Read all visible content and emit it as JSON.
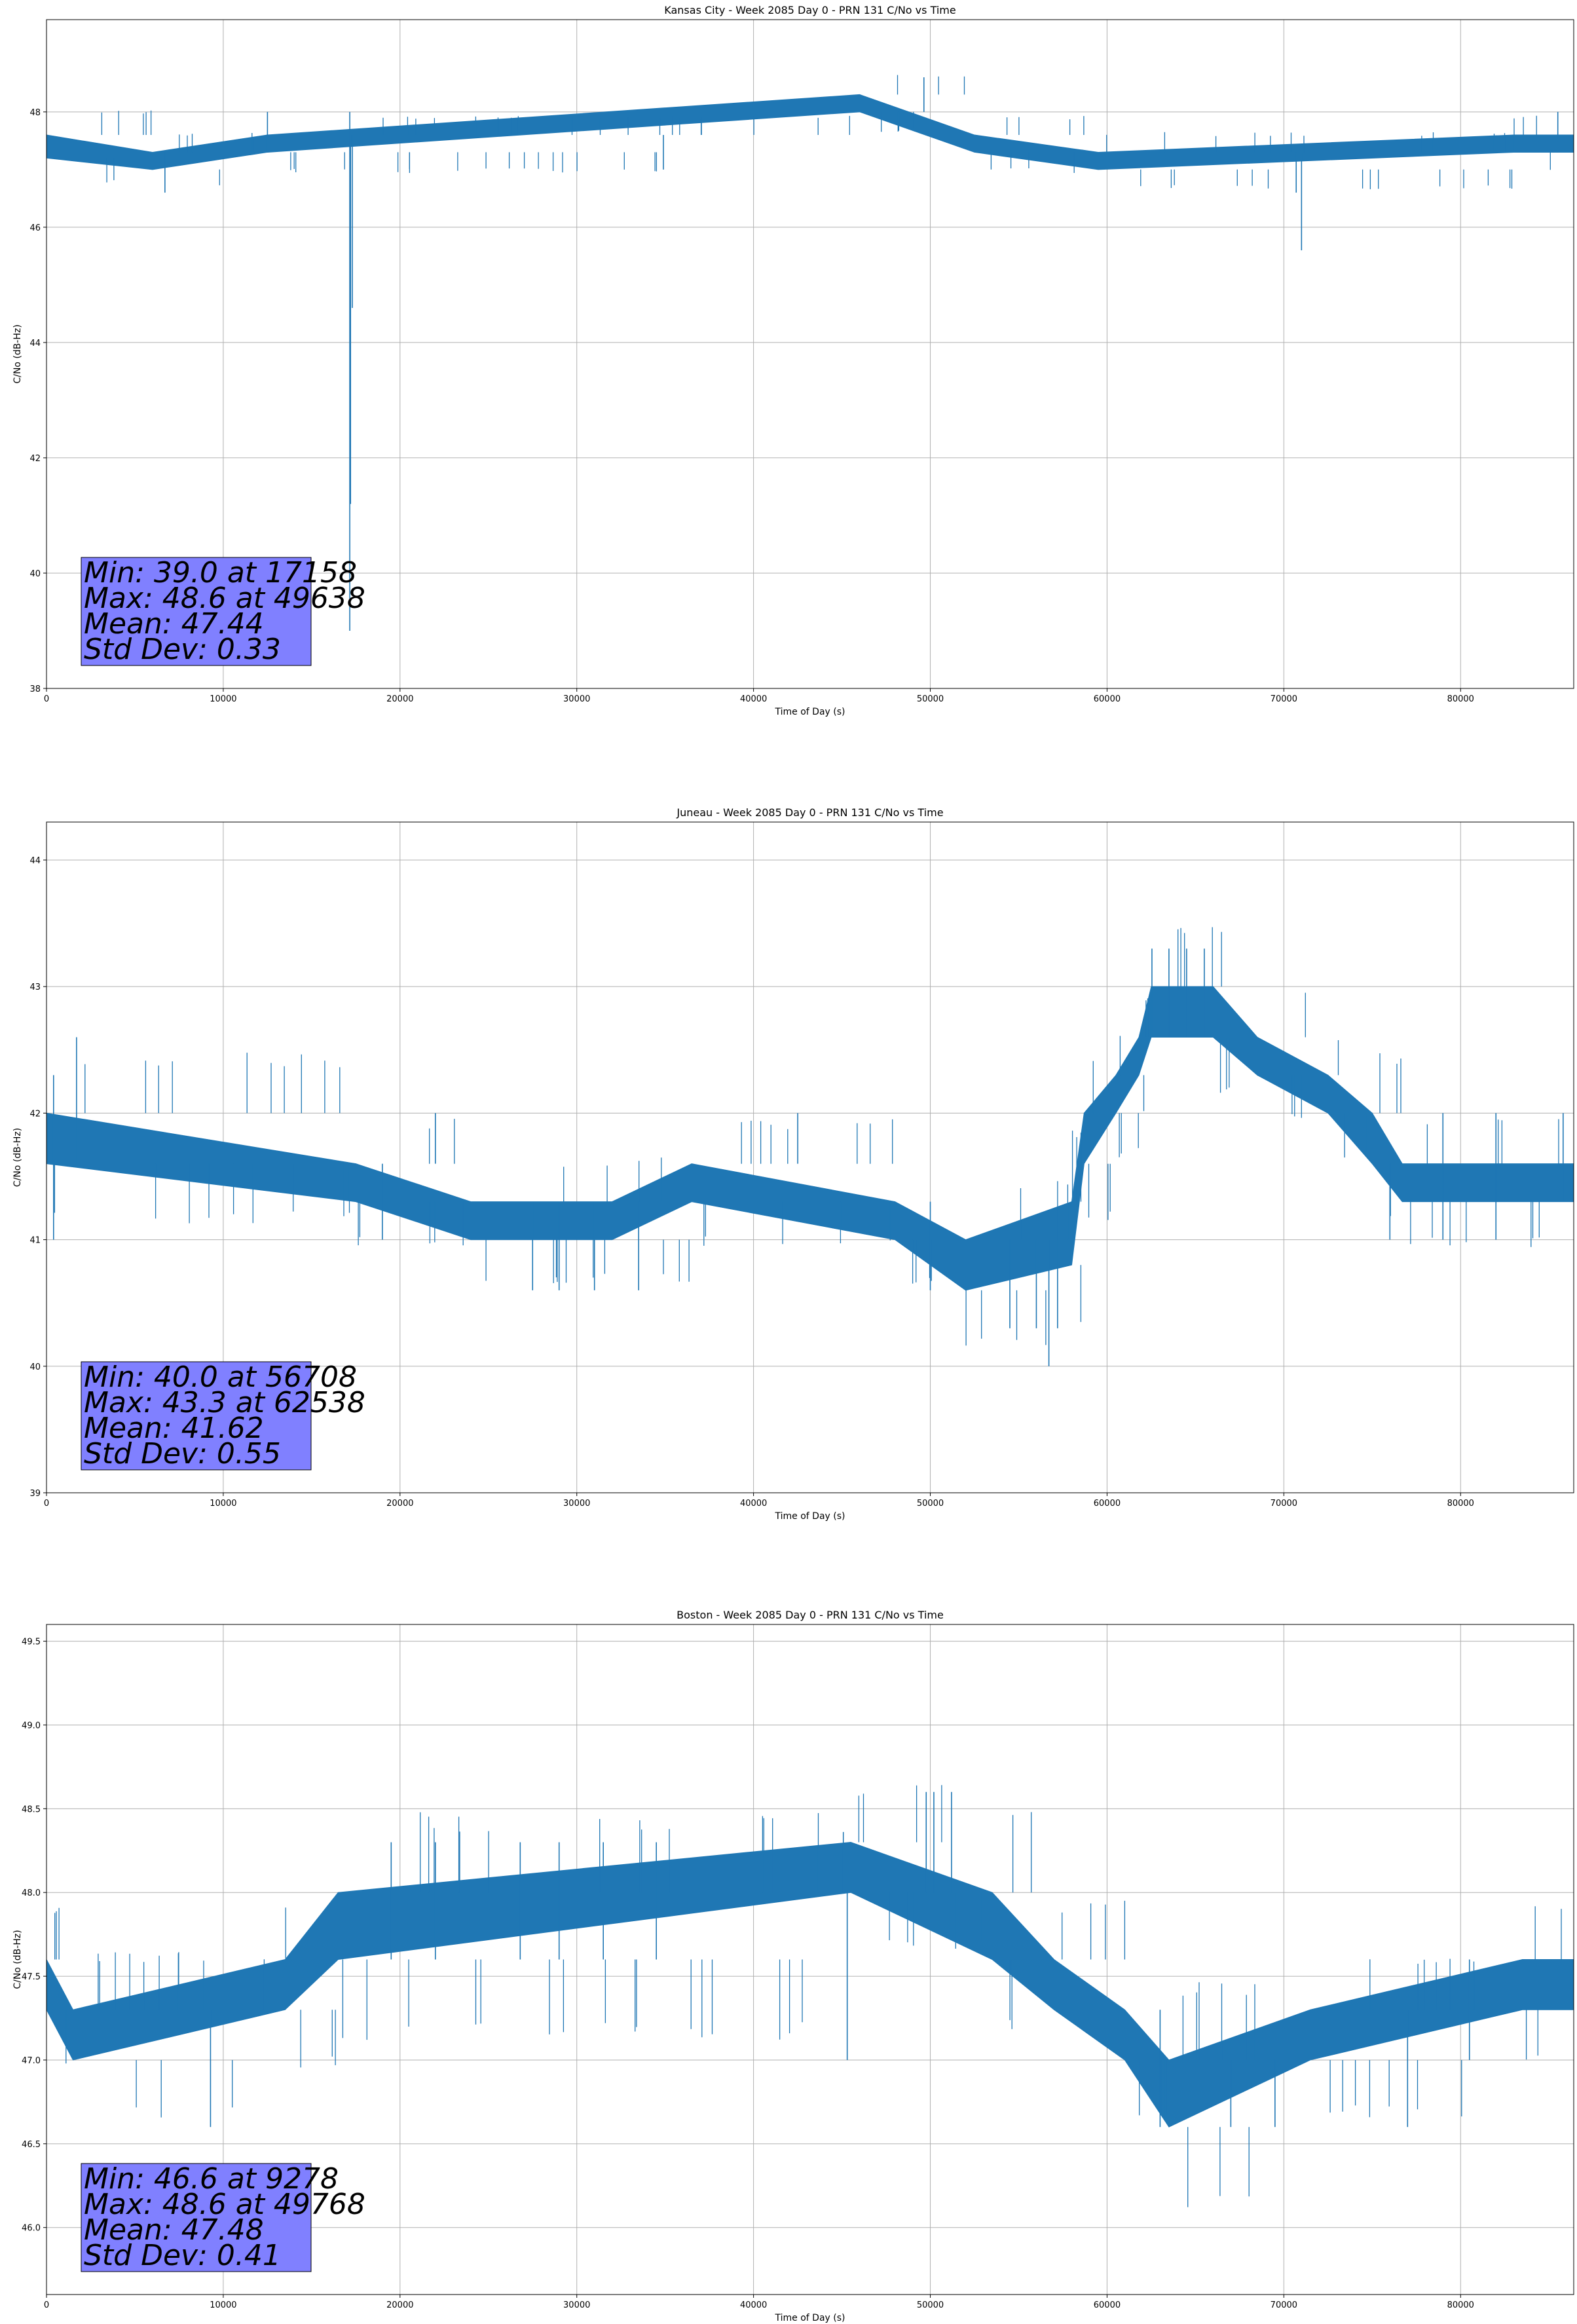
{
  "chart_data": [
    {
      "type": "line",
      "title": "Kansas City - Week 2085 Day 0 - PRN 131 C/No vs Time",
      "xlabel": "Time of Day (s)",
      "ylabel": "C/No (dB-Hz)",
      "xlim": [
        0,
        86400
      ],
      "ylim": [
        38,
        49.6
      ],
      "xticks": [
        0,
        10000,
        20000,
        30000,
        40000,
        50000,
        60000,
        70000,
        80000
      ],
      "yticks": [
        38,
        40,
        42,
        44,
        46,
        48
      ],
      "ytick_labels": [
        "38",
        "40",
        "42",
        "44",
        "46",
        "48"
      ],
      "grid": true,
      "color": "#1f77b4",
      "stats_box_color": "#8080ff",
      "stats": [
        "Min: 39.0 at 17158",
        "Max: 48.6 at 49638",
        "Mean: 47.44",
        "Std Dev: 0.33"
      ],
      "band": [
        {
          "x": 0,
          "lo": 47.2,
          "hi": 47.6
        },
        {
          "x": 6000,
          "lo": 47.0,
          "hi": 47.3
        },
        {
          "x": 12500,
          "lo": 47.3,
          "hi": 47.6
        },
        {
          "x": 46000,
          "lo": 48.0,
          "hi": 48.3
        },
        {
          "x": 52500,
          "lo": 47.3,
          "hi": 47.6
        },
        {
          "x": 59500,
          "lo": 47.0,
          "hi": 47.3
        },
        {
          "x": 83000,
          "lo": 47.3,
          "hi": 47.6
        },
        {
          "x": 86400,
          "lo": 47.3,
          "hi": 47.6
        }
      ],
      "spikes": [
        {
          "x": 6700,
          "lo": 46.6,
          "hi": 47.3
        },
        {
          "x": 12500,
          "lo": 47.3,
          "hi": 48.0
        },
        {
          "x": 17158,
          "lo": 39.0,
          "hi": 48.0
        },
        {
          "x": 17200,
          "lo": 41.2,
          "hi": 47.6
        },
        {
          "x": 17300,
          "lo": 44.6,
          "hi": 47.6
        },
        {
          "x": 34900,
          "lo": 47.0,
          "hi": 47.6
        },
        {
          "x": 49638,
          "lo": 48.0,
          "hi": 48.6
        },
        {
          "x": 71000,
          "lo": 45.6,
          "hi": 47.3
        },
        {
          "x": 70700,
          "lo": 46.6,
          "hi": 47.3
        },
        {
          "x": 85500,
          "lo": 47.3,
          "hi": 48.0
        }
      ]
    },
    {
      "type": "line",
      "title": "Juneau - Week 2085 Day 0 - PRN 131 C/No vs Time",
      "xlabel": "Time of Day (s)",
      "ylabel": "C/No (dB-Hz)",
      "xlim": [
        0,
        86400
      ],
      "ylim": [
        39,
        44.3
      ],
      "xticks": [
        0,
        10000,
        20000,
        30000,
        40000,
        50000,
        60000,
        70000,
        80000
      ],
      "yticks": [
        39,
        40,
        41,
        42,
        43,
        44
      ],
      "ytick_labels": [
        "39",
        "40",
        "41",
        "42",
        "43",
        "44"
      ],
      "grid": true,
      "color": "#1f77b4",
      "stats_box_color": "#8080ff",
      "stats": [
        "Min: 40.0 at 56708",
        "Max: 43.3 at 62538",
        "Mean: 41.62",
        "Std Dev: 0.55"
      ],
      "band": [
        {
          "x": 0,
          "lo": 41.6,
          "hi": 42.0
        },
        {
          "x": 17500,
          "lo": 41.3,
          "hi": 41.6
        },
        {
          "x": 24000,
          "lo": 41.0,
          "hi": 41.3
        },
        {
          "x": 32000,
          "lo": 41.0,
          "hi": 41.3
        },
        {
          "x": 36500,
          "lo": 41.3,
          "hi": 41.6
        },
        {
          "x": 48000,
          "lo": 41.0,
          "hi": 41.3
        },
        {
          "x": 52000,
          "lo": 40.6,
          "hi": 41.0
        },
        {
          "x": 58000,
          "lo": 40.8,
          "hi": 41.3
        },
        {
          "x": 58700,
          "lo": 41.6,
          "hi": 42.0
        },
        {
          "x": 60500,
          "lo": 42.0,
          "hi": 42.3
        },
        {
          "x": 61800,
          "lo": 42.3,
          "hi": 42.6
        },
        {
          "x": 62500,
          "lo": 42.6,
          "hi": 43.0
        },
        {
          "x": 66000,
          "lo": 42.6,
          "hi": 43.0
        },
        {
          "x": 68500,
          "lo": 42.3,
          "hi": 42.6
        },
        {
          "x": 72500,
          "lo": 42.0,
          "hi": 42.3
        },
        {
          "x": 75000,
          "lo": 41.6,
          "hi": 42.0
        },
        {
          "x": 76700,
          "lo": 41.3,
          "hi": 41.6
        },
        {
          "x": 86400,
          "lo": 41.3,
          "hi": 41.6
        }
      ],
      "spikes": [
        {
          "x": 400,
          "lo": 41.0,
          "hi": 42.3
        },
        {
          "x": 1700,
          "lo": 41.6,
          "hi": 42.6
        },
        {
          "x": 19000,
          "lo": 41.0,
          "hi": 41.6
        },
        {
          "x": 22000,
          "lo": 41.6,
          "hi": 42.0
        },
        {
          "x": 27500,
          "lo": 40.6,
          "hi": 41.3
        },
        {
          "x": 29000,
          "lo": 40.6,
          "hi": 41.3
        },
        {
          "x": 31000,
          "lo": 40.6,
          "hi": 41.3
        },
        {
          "x": 33500,
          "lo": 40.6,
          "hi": 41.3
        },
        {
          "x": 42500,
          "lo": 41.6,
          "hi": 42.0
        },
        {
          "x": 50000,
          "lo": 40.6,
          "hi": 41.3
        },
        {
          "x": 54500,
          "lo": 40.3,
          "hi": 41.0
        },
        {
          "x": 56000,
          "lo": 40.3,
          "hi": 41.0
        },
        {
          "x": 56708,
          "lo": 40.0,
          "hi": 41.0
        },
        {
          "x": 57200,
          "lo": 40.3,
          "hi": 41.0
        },
        {
          "x": 62538,
          "lo": 42.6,
          "hi": 43.3
        },
        {
          "x": 63500,
          "lo": 42.6,
          "hi": 43.3
        },
        {
          "x": 64500,
          "lo": 42.6,
          "hi": 43.3
        },
        {
          "x": 65500,
          "lo": 42.6,
          "hi": 43.3
        },
        {
          "x": 76000,
          "lo": 41.0,
          "hi": 41.6
        },
        {
          "x": 79000,
          "lo": 41.0,
          "hi": 42.0
        },
        {
          "x": 82000,
          "lo": 41.0,
          "hi": 42.0
        },
        {
          "x": 85800,
          "lo": 41.3,
          "hi": 42.0
        }
      ]
    },
    {
      "type": "line",
      "title": "Boston - Week 2085 Day 0 - PRN 131 C/No vs Time",
      "xlabel": "Time of Day (s)",
      "ylabel": "C/No (dB-Hz)",
      "xlim": [
        0,
        86400
      ],
      "ylim": [
        45.6,
        49.6
      ],
      "xticks": [
        0,
        10000,
        20000,
        30000,
        40000,
        50000,
        60000,
        70000,
        80000
      ],
      "yticks": [
        46.0,
        46.5,
        47.0,
        47.5,
        48.0,
        48.5,
        49.0,
        49.5
      ],
      "ytick_labels": [
        "46.0",
        "46.5",
        "47.0",
        "47.5",
        "48.0",
        "48.5",
        "49.0",
        "49.5"
      ],
      "grid": true,
      "color": "#1f77b4",
      "stats_box_color": "#8080ff",
      "stats": [
        "Min: 46.6 at 9278",
        "Max: 48.6 at 49768",
        "Mean: 47.48",
        "Std Dev: 0.41"
      ],
      "band": [
        {
          "x": 0,
          "lo": 47.3,
          "hi": 47.6
        },
        {
          "x": 1500,
          "lo": 47.0,
          "hi": 47.3
        },
        {
          "x": 13500,
          "lo": 47.3,
          "hi": 47.6
        },
        {
          "x": 16500,
          "lo": 47.6,
          "hi": 48.0
        },
        {
          "x": 45500,
          "lo": 48.0,
          "hi": 48.3
        },
        {
          "x": 53500,
          "lo": 47.6,
          "hi": 48.0
        },
        {
          "x": 57000,
          "lo": 47.3,
          "hi": 47.6
        },
        {
          "x": 61000,
          "lo": 47.0,
          "hi": 47.3
        },
        {
          "x": 63500,
          "lo": 46.6,
          "hi": 47.0
        },
        {
          "x": 71500,
          "lo": 47.0,
          "hi": 47.3
        },
        {
          "x": 83500,
          "lo": 47.3,
          "hi": 47.6
        },
        {
          "x": 86400,
          "lo": 47.3,
          "hi": 47.6
        }
      ],
      "spikes": [
        {
          "x": 9278,
          "lo": 46.6,
          "hi": 47.3
        },
        {
          "x": 19500,
          "lo": 47.6,
          "hi": 48.3
        },
        {
          "x": 22000,
          "lo": 47.6,
          "hi": 48.3
        },
        {
          "x": 26800,
          "lo": 47.6,
          "hi": 48.3
        },
        {
          "x": 29000,
          "lo": 47.6,
          "hi": 48.3
        },
        {
          "x": 31500,
          "lo": 47.6,
          "hi": 48.3
        },
        {
          "x": 34500,
          "lo": 47.6,
          "hi": 48.3
        },
        {
          "x": 45300,
          "lo": 47.0,
          "hi": 48.0
        },
        {
          "x": 49768,
          "lo": 48.0,
          "hi": 48.6
        },
        {
          "x": 50200,
          "lo": 48.0,
          "hi": 48.6
        },
        {
          "x": 51200,
          "lo": 48.0,
          "hi": 48.6
        },
        {
          "x": 63000,
          "lo": 46.6,
          "hi": 47.3
        },
        {
          "x": 67000,
          "lo": 46.6,
          "hi": 47.0
        },
        {
          "x": 69500,
          "lo": 46.6,
          "hi": 47.0
        },
        {
          "x": 77000,
          "lo": 46.6,
          "hi": 47.3
        },
        {
          "x": 80500,
          "lo": 47.0,
          "hi": 47.6
        }
      ]
    }
  ]
}
